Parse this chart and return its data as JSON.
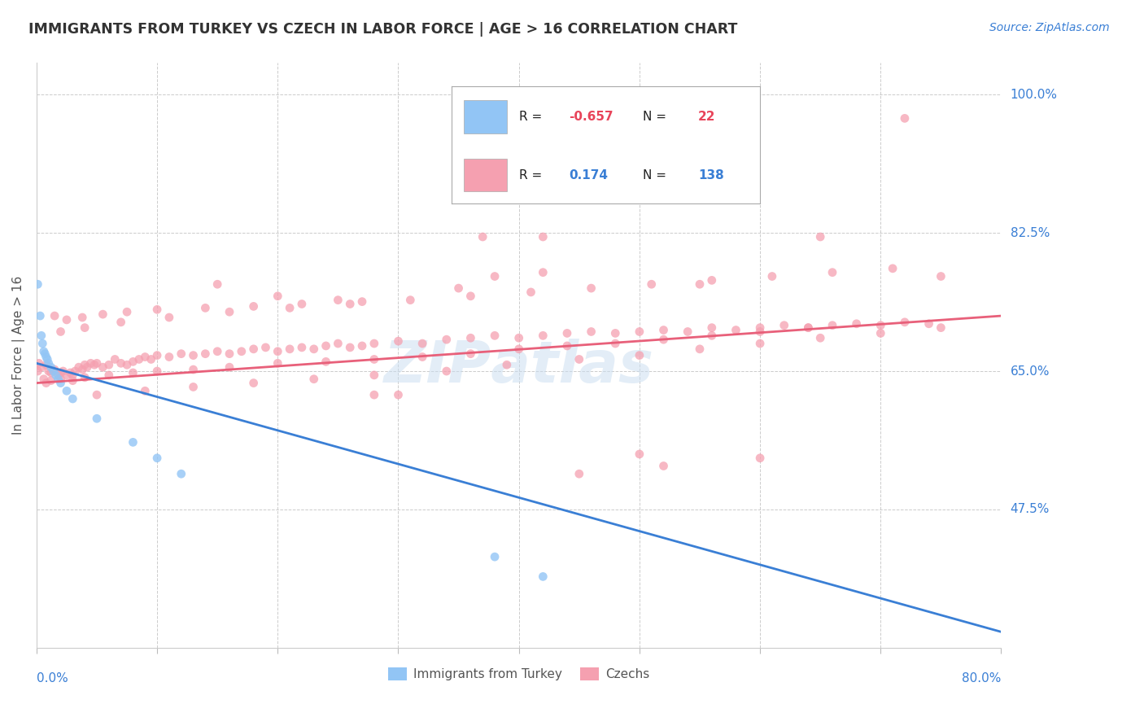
{
  "title": "IMMIGRANTS FROM TURKEY VS CZECH IN LABOR FORCE | AGE > 16 CORRELATION CHART",
  "source_text": "Source: ZipAtlas.com",
  "ylabel": "In Labor Force | Age > 16",
  "xlim": [
    0.0,
    0.8
  ],
  "ylim": [
    0.3,
    1.04
  ],
  "ytick_positions": [
    0.475,
    0.65,
    0.825,
    1.0
  ],
  "ytick_labels": [
    "47.5%",
    "65.0%",
    "82.5%",
    "100.0%"
  ],
  "color_turkey": "#92C5F5",
  "color_czech": "#F5A0B0",
  "color_turkey_line": "#3A7FD5",
  "color_czech_line": "#E8607A",
  "watermark": "ZIP­atlas",
  "legend_r1": "-0.657",
  "legend_n1": "22",
  "legend_r2": "0.174",
  "legend_n2": "138",
  "turkey_x": [
    0.001,
    0.003,
    0.004,
    0.005,
    0.006,
    0.007,
    0.008,
    0.009,
    0.01,
    0.012,
    0.014,
    0.016,
    0.018,
    0.02,
    0.025,
    0.03,
    0.05,
    0.08,
    0.1,
    0.12,
    0.42,
    0.38
  ],
  "turkey_y": [
    0.76,
    0.72,
    0.695,
    0.685,
    0.675,
    0.672,
    0.668,
    0.665,
    0.66,
    0.655,
    0.65,
    0.645,
    0.64,
    0.635,
    0.625,
    0.615,
    0.59,
    0.56,
    0.54,
    0.52,
    0.39,
    0.415
  ],
  "czech_x": [
    0.001,
    0.002,
    0.004,
    0.006,
    0.008,
    0.01,
    0.012,
    0.015,
    0.018,
    0.02,
    0.022,
    0.025,
    0.028,
    0.03,
    0.032,
    0.035,
    0.038,
    0.04,
    0.042,
    0.045,
    0.048,
    0.05,
    0.055,
    0.06,
    0.065,
    0.07,
    0.075,
    0.08,
    0.085,
    0.09,
    0.095,
    0.1,
    0.11,
    0.12,
    0.13,
    0.14,
    0.15,
    0.16,
    0.17,
    0.18,
    0.19,
    0.2,
    0.21,
    0.22,
    0.23,
    0.24,
    0.25,
    0.26,
    0.27,
    0.28,
    0.3,
    0.32,
    0.34,
    0.36,
    0.38,
    0.4,
    0.42,
    0.44,
    0.46,
    0.48,
    0.5,
    0.52,
    0.54,
    0.56,
    0.58,
    0.6,
    0.62,
    0.64,
    0.66,
    0.68,
    0.7,
    0.72,
    0.74,
    0.008,
    0.012,
    0.02,
    0.03,
    0.04,
    0.06,
    0.08,
    0.1,
    0.13,
    0.16,
    0.2,
    0.24,
    0.28,
    0.32,
    0.36,
    0.4,
    0.44,
    0.48,
    0.52,
    0.56,
    0.6,
    0.64,
    0.05,
    0.09,
    0.13,
    0.18,
    0.23,
    0.28,
    0.34,
    0.39,
    0.45,
    0.5,
    0.55,
    0.6,
    0.65,
    0.7,
    0.75,
    0.015,
    0.025,
    0.038,
    0.055,
    0.075,
    0.1,
    0.14,
    0.18,
    0.22,
    0.27,
    0.02,
    0.04,
    0.07,
    0.11,
    0.16,
    0.21,
    0.26,
    0.31,
    0.36,
    0.41,
    0.46,
    0.51,
    0.56,
    0.61,
    0.66,
    0.71,
    0.37,
    0.42
  ],
  "czech_y": [
    0.65,
    0.66,
    0.655,
    0.64,
    0.658,
    0.65,
    0.648,
    0.652,
    0.645,
    0.648,
    0.65,
    0.645,
    0.648,
    0.645,
    0.65,
    0.655,
    0.652,
    0.658,
    0.655,
    0.66,
    0.658,
    0.66,
    0.655,
    0.658,
    0.665,
    0.66,
    0.658,
    0.662,
    0.665,
    0.668,
    0.665,
    0.67,
    0.668,
    0.672,
    0.67,
    0.672,
    0.675,
    0.672,
    0.675,
    0.678,
    0.68,
    0.675,
    0.678,
    0.68,
    0.678,
    0.682,
    0.685,
    0.68,
    0.682,
    0.685,
    0.688,
    0.685,
    0.69,
    0.692,
    0.695,
    0.692,
    0.695,
    0.698,
    0.7,
    0.698,
    0.7,
    0.702,
    0.7,
    0.705,
    0.702,
    0.705,
    0.708,
    0.705,
    0.708,
    0.71,
    0.708,
    0.712,
    0.71,
    0.635,
    0.638,
    0.64,
    0.638,
    0.642,
    0.645,
    0.648,
    0.65,
    0.652,
    0.655,
    0.66,
    0.662,
    0.665,
    0.668,
    0.672,
    0.678,
    0.682,
    0.685,
    0.69,
    0.695,
    0.7,
    0.705,
    0.62,
    0.625,
    0.63,
    0.635,
    0.64,
    0.645,
    0.65,
    0.658,
    0.665,
    0.67,
    0.678,
    0.685,
    0.692,
    0.698,
    0.705,
    0.72,
    0.715,
    0.718,
    0.722,
    0.725,
    0.728,
    0.73,
    0.732,
    0.735,
    0.738,
    0.7,
    0.705,
    0.712,
    0.718,
    0.725,
    0.73,
    0.735,
    0.74,
    0.745,
    0.75,
    0.755,
    0.76,
    0.765,
    0.77,
    0.775,
    0.78,
    0.82,
    0.82
  ],
  "czech_outliers_x": [
    0.2,
    0.28,
    0.35,
    0.42,
    0.52,
    0.3,
    0.45,
    0.6,
    0.72,
    0.15,
    0.25,
    0.38,
    0.5,
    0.65,
    0.75,
    0.55
  ],
  "czech_outliers_y": [
    0.745,
    0.62,
    0.755,
    0.775,
    0.53,
    0.62,
    0.52,
    0.54,
    0.97,
    0.76,
    0.74,
    0.77,
    0.545,
    0.82,
    0.77,
    0.76
  ]
}
